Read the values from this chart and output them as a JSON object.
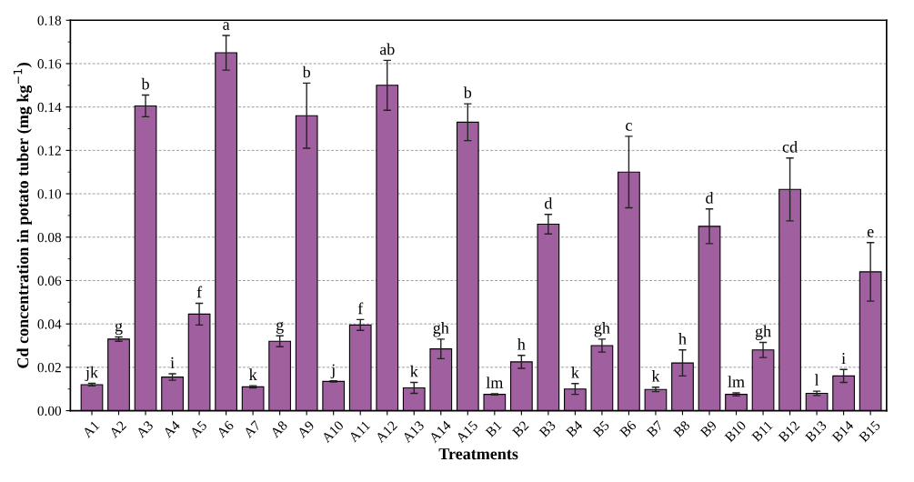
{
  "chart_data": {
    "type": "bar",
    "xlabel": "Treatments",
    "ylabel": "Cd concentration in potato tuber (mg kg$^{−1}$)",
    "categories": [
      "A1",
      "A2",
      "A3",
      "A4",
      "A5",
      "A6",
      "A7",
      "A8",
      "A9",
      "A10",
      "A11",
      "A12",
      "A13",
      "A14",
      "A15",
      "B1",
      "B2",
      "B3",
      "B4",
      "B5",
      "B6",
      "B7",
      "B8",
      "B9",
      "B10",
      "B11",
      "B12",
      "B13",
      "B14",
      "B15"
    ],
    "values": [
      0.012,
      0.033,
      0.1405,
      0.0155,
      0.0445,
      0.165,
      0.011,
      0.032,
      0.136,
      0.0135,
      0.0395,
      0.15,
      0.0105,
      0.0285,
      0.133,
      0.0075,
      0.0225,
      0.086,
      0.01,
      0.03,
      0.11,
      0.0098,
      0.022,
      0.085,
      0.0075,
      0.028,
      0.102,
      0.008,
      0.016,
      0.064
    ],
    "errors": [
      0.0006,
      0.001,
      0.005,
      0.0015,
      0.005,
      0.008,
      0.0005,
      0.0025,
      0.015,
      0.0003,
      0.0025,
      0.0115,
      0.0025,
      0.0045,
      0.0085,
      0.0003,
      0.003,
      0.0045,
      0.0025,
      0.003,
      0.0165,
      0.001,
      0.006,
      0.008,
      0.0007,
      0.0035,
      0.0145,
      0.001,
      0.003,
      0.0135
    ],
    "value_labels": [
      "jk",
      "g",
      "b",
      "i",
      "f",
      "a",
      "k",
      "g",
      "b",
      "j",
      "f",
      "ab",
      "k",
      "gh",
      "b",
      "lm",
      "h",
      "d",
      "k",
      "gh",
      "c",
      "k",
      "h",
      "d",
      "lm",
      "gh",
      "cd",
      "l",
      "i",
      "e"
    ],
    "color": "#a05f9e",
    "ylim": [
      0,
      0.18
    ],
    "yticks": [
      {
        "value": 0,
        "label": "0.00"
      },
      {
        "value": 0.02,
        "label": "0.02"
      },
      {
        "value": 0.04,
        "label": "0.04"
      },
      {
        "value": 0.06,
        "label": "0.06"
      },
      {
        "value": 0.08,
        "label": "0.08"
      },
      {
        "value": 0.1,
        "label": "0.10"
      },
      {
        "value": 0.12,
        "label": "0.12"
      },
      {
        "value": 0.14,
        "label": "0.14"
      },
      {
        "value": 0.16,
        "label": "0.16"
      },
      {
        "value": 0.18,
        "label": "0.18"
      }
    ],
    "grid": "y"
  }
}
